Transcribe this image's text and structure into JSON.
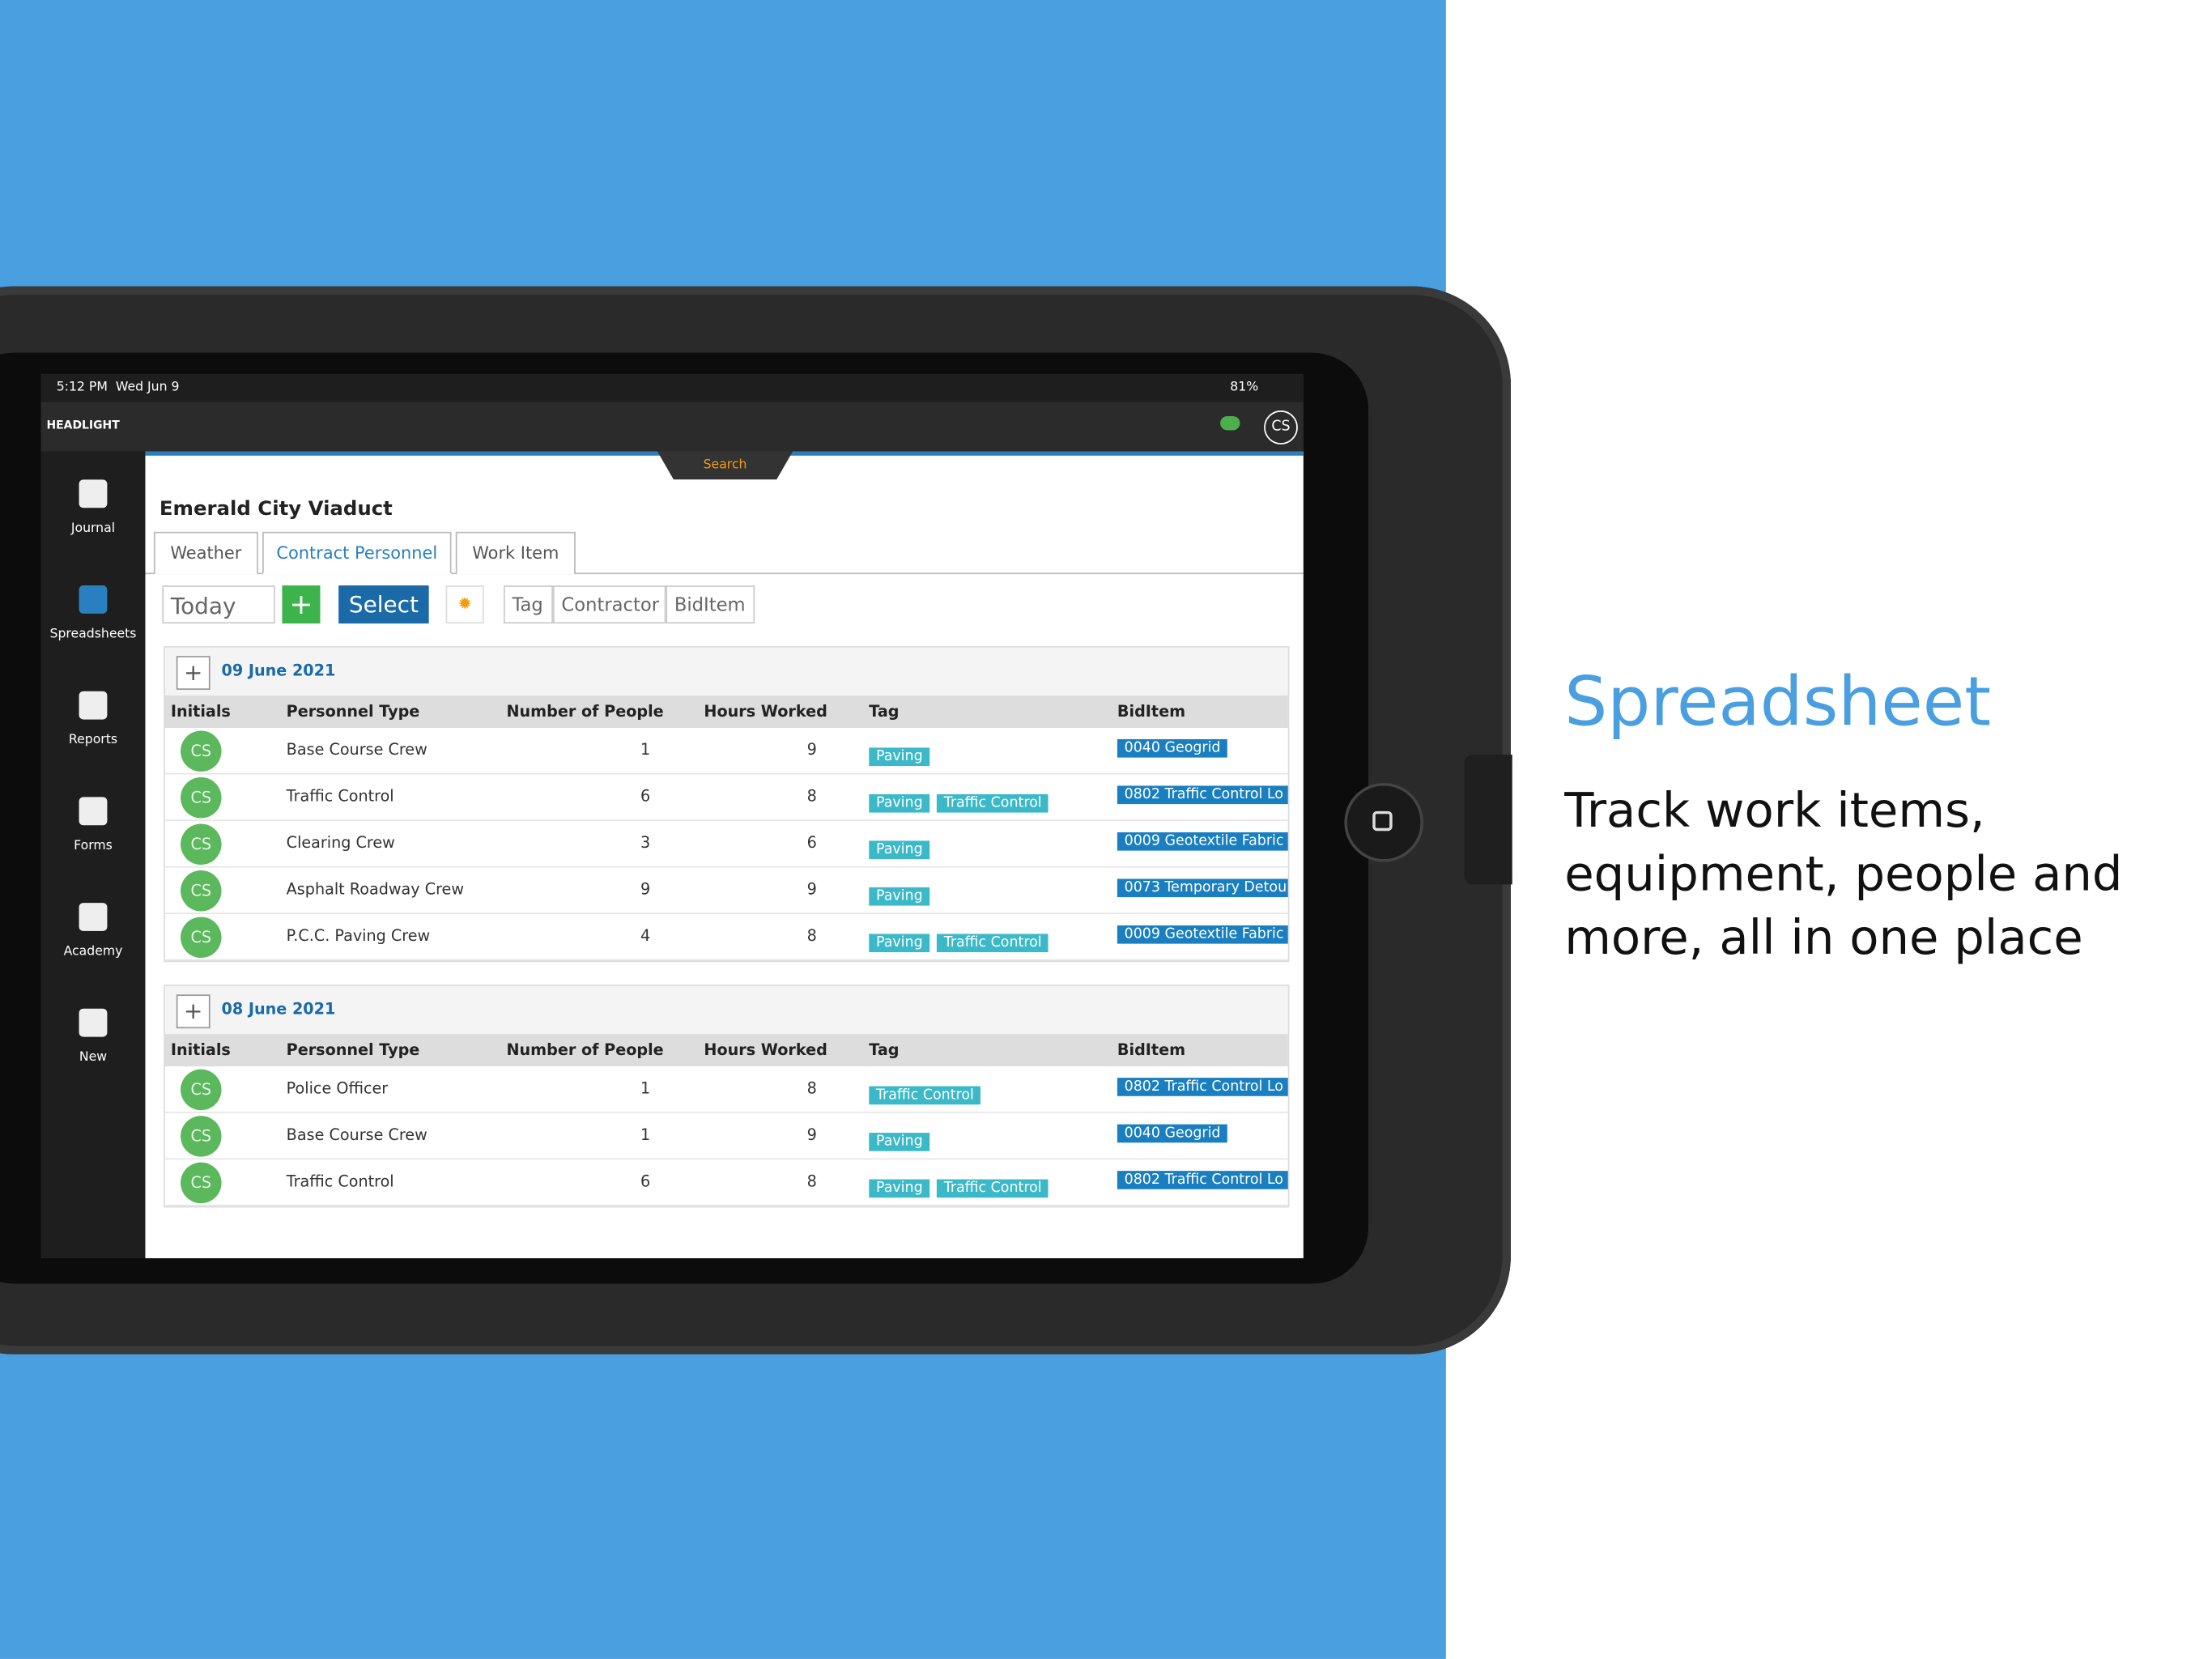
{
  "promo": {
    "title": "Spreadsheet",
    "lines": [
      "Track work items,",
      "equipment, people and",
      "more, all in one place"
    ]
  },
  "status_bar": {
    "time": "5:12 PM",
    "date": "Wed Jun 9",
    "battery": "81%"
  },
  "app": {
    "logo": "HEADLIGHT",
    "user": "CS",
    "search": "Search"
  },
  "nav": [
    "Journal",
    "Spreadsheets",
    "Reports",
    "Forms",
    "Academy",
    "New"
  ],
  "project": "Emerald City Viaduct",
  "tabs": [
    "Weather",
    "Contract Personnel",
    "Work Item"
  ],
  "toolbar": {
    "today": "Today",
    "select": "Select",
    "filters": [
      "Tag",
      "Contractor",
      "BidItem"
    ]
  },
  "columns": [
    "Initials",
    "Personnel Type",
    "Number of People",
    "Hours Worked",
    "Tag",
    "BidItem"
  ],
  "groups": [
    {
      "date": "09 June 2021",
      "rows": [
        {
          "initials": "CS",
          "personnel_type": "Base Course Crew",
          "number_of_people": 1,
          "hours_worked": 9,
          "tags": [
            "Paving"
          ],
          "biditem": "0040 Geogrid"
        },
        {
          "initials": "CS",
          "personnel_type": "Traffic Control",
          "number_of_people": 6,
          "hours_worked": 8,
          "tags": [
            "Paving",
            "Traffic Control"
          ],
          "biditem": "0802 Traffic Control Lo"
        },
        {
          "initials": "CS",
          "personnel_type": "Clearing Crew",
          "number_of_people": 3,
          "hours_worked": 6,
          "tags": [
            "Paving"
          ],
          "biditem": "0009 Geotextile Fabric"
        },
        {
          "initials": "CS",
          "personnel_type": "Asphalt Roadway Crew",
          "number_of_people": 9,
          "hours_worked": 9,
          "tags": [
            "Paving"
          ],
          "biditem": "0073 Temporary Detou"
        },
        {
          "initials": "CS",
          "personnel_type": "P.C.C. Paving Crew",
          "number_of_people": 4,
          "hours_worked": 8,
          "tags": [
            "Paving",
            "Traffic Control"
          ],
          "biditem": "0009 Geotextile Fabric"
        }
      ]
    },
    {
      "date": "08 June 2021",
      "rows": [
        {
          "initials": "CS",
          "personnel_type": "Police Officer",
          "number_of_people": 1,
          "hours_worked": 8,
          "tags": [
            "Traffic Control"
          ],
          "biditem": "0802 Traffic Control Lo"
        },
        {
          "initials": "CS",
          "personnel_type": "Base Course Crew",
          "number_of_people": 1,
          "hours_worked": 9,
          "tags": [
            "Paving"
          ],
          "biditem": "0040 Geogrid"
        },
        {
          "initials": "CS",
          "personnel_type": "Traffic Control",
          "number_of_people": 6,
          "hours_worked": 8,
          "tags": [
            "Paving",
            "Traffic Control"
          ],
          "biditem": "0802 Traffic Control Lo"
        }
      ]
    }
  ]
}
